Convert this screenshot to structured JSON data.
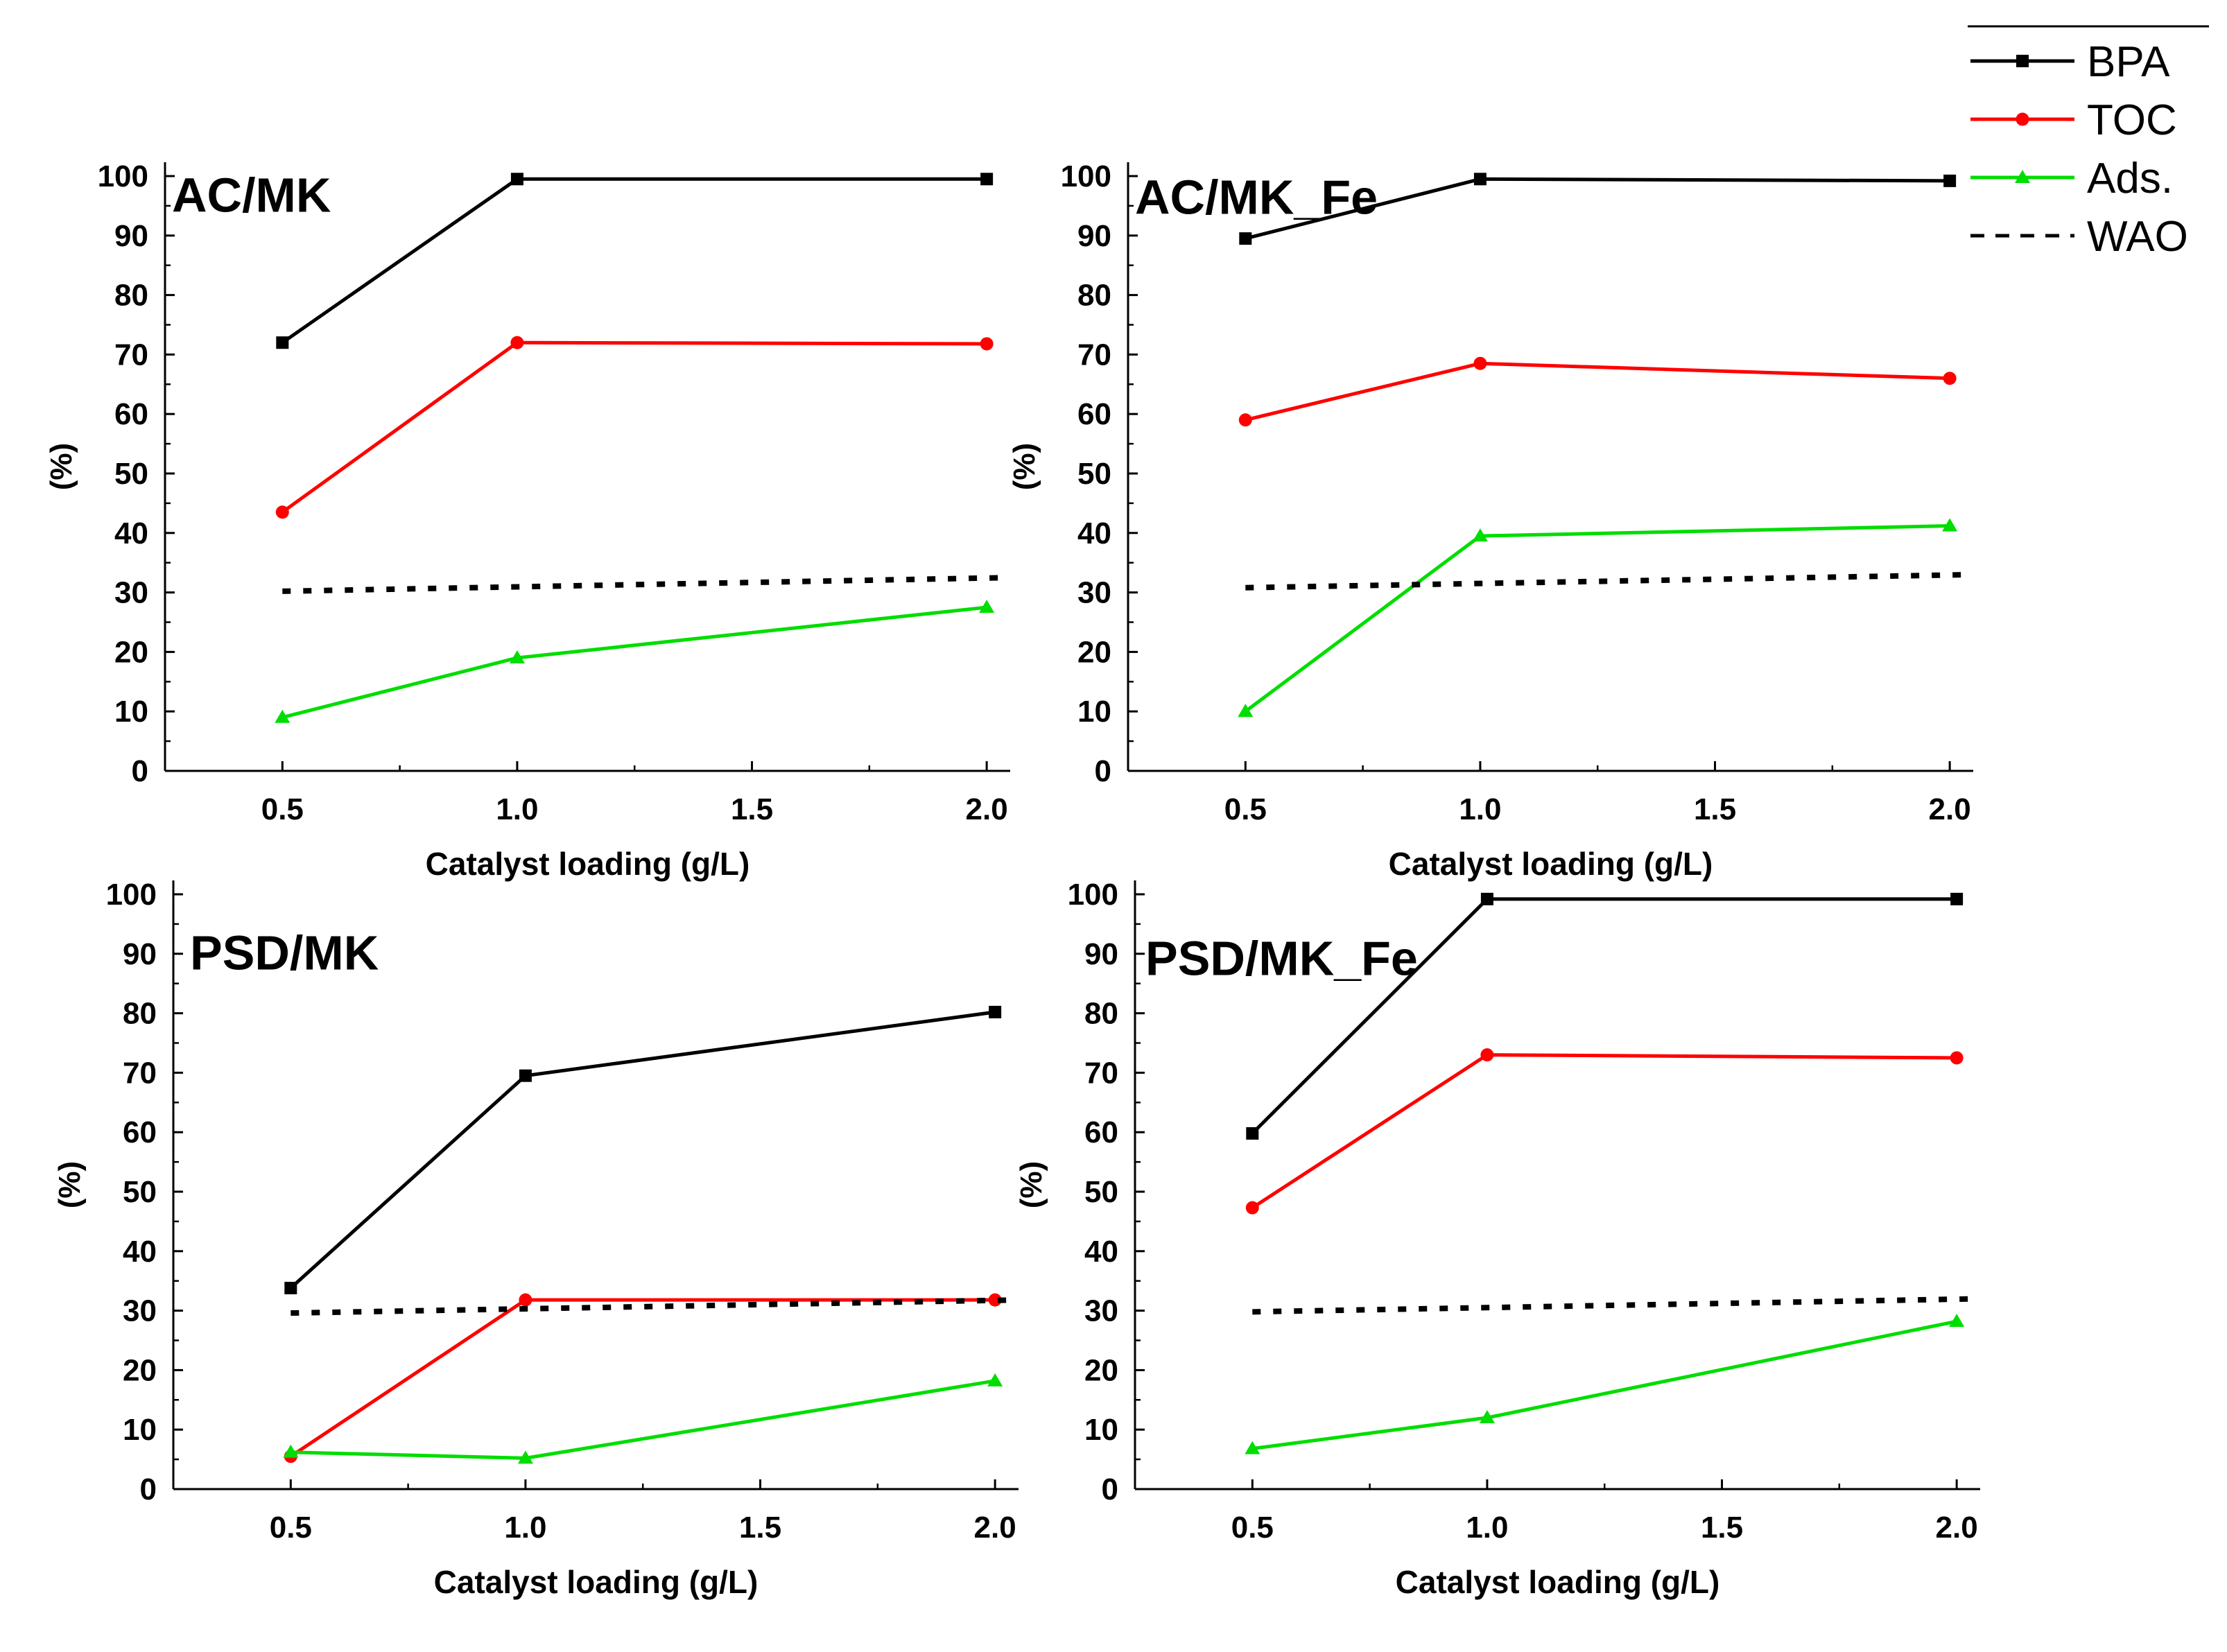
{
  "legend": [
    {
      "name": "BPA",
      "color": "#000000",
      "marker": "square",
      "style": "solid"
    },
    {
      "name": "TOC",
      "color": "#ff0000",
      "marker": "circle",
      "style": "solid"
    },
    {
      "name": "Ads.",
      "color": "#00dd00",
      "marker": "triangle",
      "style": "solid"
    },
    {
      "name": "WAO",
      "color": "#000000",
      "marker": "none",
      "style": "dotted"
    }
  ],
  "chart_data": [
    {
      "type": "line",
      "title": "AC/MK",
      "xlabel": "Catalyst loading (g/L)",
      "ylabel": "(%)",
      "xlim": [
        0.25,
        2.05
      ],
      "ylim": [
        0,
        100
      ],
      "xticks": [
        "0.5",
        "1.0",
        "1.5",
        "2.0"
      ],
      "yticks": [
        "0",
        "10",
        "20",
        "30",
        "40",
        "50",
        "60",
        "70",
        "80",
        "90",
        "100"
      ],
      "x": [
        0.5,
        1.0,
        2.0
      ],
      "series": [
        {
          "name": "BPA",
          "values": [
            72,
            99.5,
            99.5
          ]
        },
        {
          "name": "TOC",
          "values": [
            43.5,
            72,
            71.8
          ]
        },
        {
          "name": "Ads.",
          "values": [
            9,
            19,
            27.5
          ]
        },
        {
          "name": "WAO",
          "x": [
            0.5,
            2.05
          ],
          "values": [
            30.2,
            32.5
          ]
        }
      ]
    },
    {
      "type": "line",
      "title": "AC/MK_Fe",
      "xlabel": "Catalyst loading (g/L)",
      "ylabel": "(%)",
      "xlim": [
        0.25,
        2.05
      ],
      "ylim": [
        0,
        100
      ],
      "xticks": [
        "0.5",
        "1.0",
        "1.5",
        "2.0"
      ],
      "yticks": [
        "0",
        "10",
        "20",
        "30",
        "40",
        "50",
        "60",
        "70",
        "80",
        "90",
        "100"
      ],
      "x": [
        0.5,
        1.0,
        2.0
      ],
      "series": [
        {
          "name": "BPA",
          "values": [
            89.5,
            99.5,
            99.2
          ]
        },
        {
          "name": "TOC",
          "values": [
            59,
            68.5,
            66
          ]
        },
        {
          "name": "Ads.",
          "values": [
            10,
            39.5,
            41.2
          ]
        },
        {
          "name": "WAO",
          "x": [
            0.5,
            2.05
          ],
          "values": [
            30.8,
            33
          ]
        }
      ]
    },
    {
      "type": "line",
      "title": "PSD/MK",
      "xlabel": "Catalyst loading (g/L)",
      "ylabel": "(%)",
      "xlim": [
        0.25,
        2.05
      ],
      "ylim": [
        0,
        100
      ],
      "xticks": [
        "0.5",
        "1.0",
        "1.5",
        "2.0"
      ],
      "yticks": [
        "0",
        "10",
        "20",
        "30",
        "40",
        "50",
        "60",
        "70",
        "80",
        "90",
        "100"
      ],
      "x": [
        0.5,
        1.0,
        2.0
      ],
      "series": [
        {
          "name": "BPA",
          "values": [
            33.8,
            69.5,
            80.2
          ]
        },
        {
          "name": "TOC",
          "values": [
            5.5,
            31.8,
            31.8
          ]
        },
        {
          "name": "Ads.",
          "values": [
            6.2,
            5.2,
            18.2
          ]
        },
        {
          "name": "WAO",
          "x": [
            0.5,
            2.05
          ],
          "values": [
            29.6,
            31.8
          ]
        }
      ]
    },
    {
      "type": "line",
      "title": "PSD/MK_Fe",
      "xlabel": "Catalyst loading (g/L)",
      "ylabel": "(%)",
      "xlim": [
        0.25,
        2.05
      ],
      "ylim": [
        0,
        100
      ],
      "xticks": [
        "0.5",
        "1.0",
        "1.5",
        "2.0"
      ],
      "yticks": [
        "0",
        "10",
        "20",
        "30",
        "40",
        "50",
        "60",
        "70",
        "80",
        "90",
        "100"
      ],
      "x": [
        0.5,
        1.0,
        2.0
      ],
      "series": [
        {
          "name": "BPA",
          "values": [
            59.8,
            99.2,
            99.2
          ]
        },
        {
          "name": "TOC",
          "values": [
            47.3,
            73,
            72.5
          ]
        },
        {
          "name": "Ads.",
          "values": [
            6.8,
            12,
            28.2
          ]
        },
        {
          "name": "WAO",
          "x": [
            0.5,
            2.05
          ],
          "values": [
            29.8,
            32
          ]
        }
      ]
    }
  ]
}
